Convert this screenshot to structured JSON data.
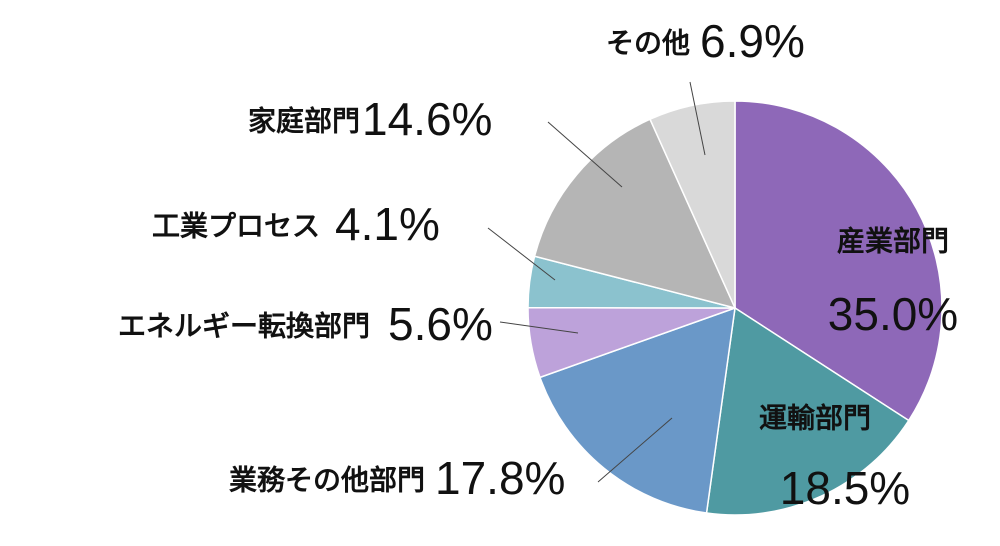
{
  "chart_data": {
    "type": "pie",
    "categories": [
      "産業部門",
      "運輸部門",
      "業務その他部門",
      "エネルギー転換部門",
      "工業プロセス",
      "家庭部門",
      "その他"
    ],
    "values": [
      35.0,
      18.5,
      17.8,
      5.6,
      4.1,
      14.6,
      6.9
    ],
    "value_labels": [
      "35.0%",
      "18.5%",
      "17.8%",
      "5.6%",
      "4.1%",
      "14.6%",
      "6.9%"
    ],
    "colors": [
      "#8e68b8",
      "#4f9aa2",
      "#6a98c8",
      "#bda2da",
      "#8bc2ce",
      "#b5b5b5",
      "#d9d9d9"
    ]
  }
}
